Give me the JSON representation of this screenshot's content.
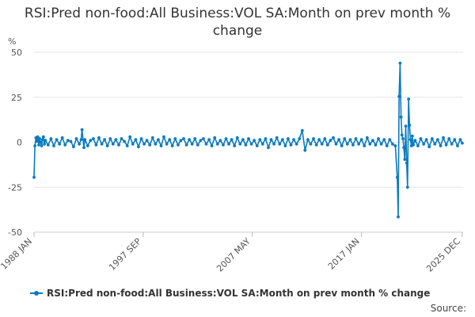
{
  "title": "RSI:Pred non-food:All Business:VOL SA:Month on prev month % change",
  "source_label": "Source:",
  "chart_data": {
    "type": "line",
    "title": "RSI:Pred non-food:All Business:VOL SA:Month on prev month % change",
    "ylabel": "%",
    "ylim": [
      -50,
      50
    ],
    "yticks": [
      50,
      25,
      0,
      -25,
      -50
    ],
    "xlim": [
      1988.0,
      2026.0
    ],
    "xticks": [
      {
        "label": "1988 JAN",
        "year": 1988.0
      },
      {
        "label": "1997 SEP",
        "year": 1997.67
      },
      {
        "label": "2007 MAY",
        "year": 2007.33
      },
      {
        "label": "2017 JAN",
        "year": 2017.0
      },
      {
        "label": "2025 DEC",
        "year": 2025.92
      }
    ],
    "grid": true,
    "legend_position": "bottom",
    "color": "#0b7bc1",
    "series": [
      {
        "name": "RSI:Pred non-food:All Business:VOL SA:Month on prev month % change",
        "x": [
          1988.0,
          1988.08,
          1988.17,
          1988.25,
          1988.33,
          1988.42,
          1988.5,
          1988.58,
          1988.67,
          1988.75,
          1988.83,
          1988.92,
          1989.0,
          1989.25,
          1989.5,
          1989.75,
          1990.0,
          1990.25,
          1990.5,
          1990.75,
          1991.0,
          1991.25,
          1991.5,
          1991.75,
          1992.0,
          1992.17,
          1992.25,
          1992.42,
          1992.5,
          1992.75,
          1993.0,
          1993.25,
          1993.5,
          1993.75,
          1994.0,
          1994.25,
          1994.5,
          1994.75,
          1995.0,
          1995.25,
          1995.5,
          1995.75,
          1996.0,
          1996.25,
          1996.5,
          1996.75,
          1997.0,
          1997.25,
          1997.5,
          1997.75,
          1998.0,
          1998.25,
          1998.5,
          1998.75,
          1999.0,
          1999.25,
          1999.5,
          1999.75,
          2000.0,
          2000.25,
          2000.5,
          2000.75,
          2001.0,
          2001.25,
          2001.5,
          2001.75,
          2002.0,
          2002.25,
          2002.5,
          2002.75,
          2003.0,
          2003.25,
          2003.5,
          2003.75,
          2004.0,
          2004.25,
          2004.5,
          2004.75,
          2005.0,
          2005.25,
          2005.5,
          2005.75,
          2006.0,
          2006.25,
          2006.5,
          2006.75,
          2007.0,
          2007.25,
          2007.5,
          2007.75,
          2008.0,
          2008.25,
          2008.5,
          2008.75,
          2009.0,
          2009.25,
          2009.5,
          2009.75,
          2010.0,
          2010.25,
          2010.5,
          2010.75,
          2011.0,
          2011.25,
          2011.5,
          2011.75,
          2012.0,
          2012.25,
          2012.5,
          2012.75,
          2013.0,
          2013.25,
          2013.5,
          2013.75,
          2014.0,
          2014.25,
          2014.5,
          2014.75,
          2015.0,
          2015.25,
          2015.5,
          2015.75,
          2016.0,
          2016.25,
          2016.5,
          2016.75,
          2017.0,
          2017.25,
          2017.5,
          2017.75,
          2018.0,
          2018.25,
          2018.5,
          2018.75,
          2019.0,
          2019.25,
          2019.5,
          2019.75,
          2020.0,
          2020.17,
          2020.25,
          2020.33,
          2020.42,
          2020.5,
          2020.58,
          2020.67,
          2020.75,
          2020.83,
          2020.92,
          2021.0,
          2021.08,
          2021.17,
          2021.25,
          2021.33,
          2021.42,
          2021.5,
          2021.58,
          2021.75,
          2022.0,
          2022.25,
          2022.5,
          2022.75,
          2023.0,
          2023.25,
          2023.5,
          2023.75,
          2024.0,
          2024.25,
          2024.5,
          2024.75,
          2025.0,
          2025.25,
          2025.5,
          2025.75,
          2025.92
        ],
        "values": [
          -19.5,
          -2.0,
          2.5,
          0.5,
          3.0,
          -1.5,
          2.0,
          0.0,
          -2.0,
          1.5,
          3.0,
          -1.0,
          1.0,
          -1.5,
          2.0,
          -2.0,
          1.5,
          -1.0,
          2.5,
          -1.5,
          1.0,
          0.5,
          -2.5,
          2.0,
          -1.0,
          1.5,
          7.0,
          -3.0,
          1.5,
          -2.0,
          1.0,
          2.0,
          -1.5,
          2.5,
          -1.0,
          1.5,
          -2.0,
          2.0,
          -1.0,
          1.5,
          -1.5,
          2.0,
          0.5,
          -2.0,
          3.0,
          -1.0,
          1.5,
          -2.5,
          2.0,
          -1.0,
          1.0,
          -1.5,
          2.5,
          -1.0,
          1.5,
          -2.0,
          3.0,
          -1.0,
          1.5,
          -2.0,
          2.0,
          -1.5,
          1.0,
          2.0,
          -1.5,
          1.5,
          -1.0,
          2.0,
          -1.5,
          1.0,
          2.0,
          -1.0,
          1.5,
          -2.0,
          2.5,
          -1.0,
          1.0,
          -1.5,
          2.0,
          -1.0,
          1.5,
          -2.0,
          2.5,
          -1.0,
          1.5,
          -1.5,
          2.0,
          -1.0,
          1.0,
          -2.0,
          1.5,
          -1.0,
          2.0,
          -3.0,
          1.5,
          -1.0,
          2.5,
          -1.0,
          1.5,
          -2.0,
          2.0,
          -1.5,
          1.5,
          -1.0,
          2.0,
          6.5,
          -4.5,
          1.5,
          -1.0,
          2.0,
          -1.5,
          1.5,
          -1.0,
          2.0,
          -1.5,
          1.0,
          2.5,
          -1.0,
          1.5,
          -2.0,
          2.0,
          -1.0,
          1.5,
          -1.5,
          2.0,
          -1.0,
          1.5,
          -2.0,
          2.5,
          -1.0,
          1.0,
          -1.5,
          2.0,
          -1.0,
          1.5,
          -2.0,
          1.5,
          -1.0,
          -2.0,
          -19.5,
          -41.5,
          25.5,
          44.0,
          14.0,
          4.0,
          2.0,
          -3.0,
          -9.5,
          9.0,
          -11.5,
          -25.0,
          24.0,
          9.5,
          1.5,
          -2.0,
          3.5,
          -1.5,
          1.0,
          -2.0,
          2.0,
          -1.0,
          1.5,
          -2.5,
          2.0,
          -1.0,
          1.5,
          -2.0,
          2.5,
          -1.5,
          2.0,
          -1.0,
          1.5,
          -2.0,
          1.5,
          -0.5
        ]
      }
    ]
  }
}
